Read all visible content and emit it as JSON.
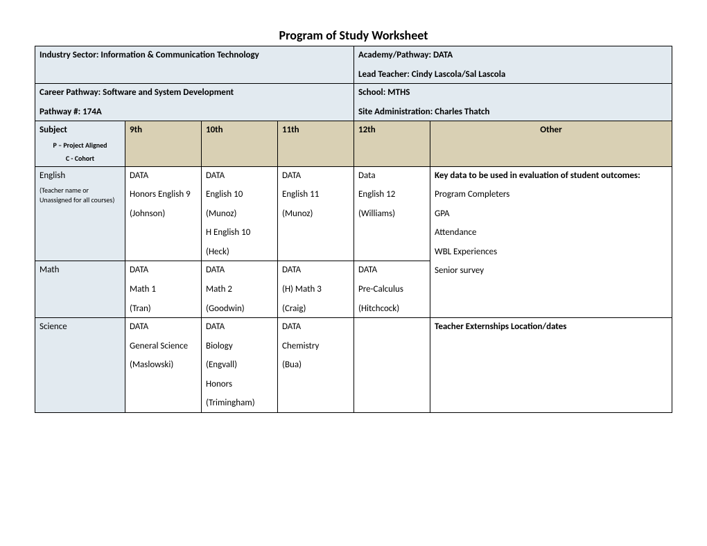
{
  "title": "Program of Study Worksheet",
  "header": {
    "industry_sector": "Industry Sector: Information & Communication Technology",
    "academy_pathway": "Academy/Pathway: DATA",
    "lead_teacher": "Lead Teacher: Cindy Lascola/Sal Lascola",
    "career_pathway": "Career Pathway: Software and System Development",
    "pathway_num": "Pathway #: 174A",
    "school": "School: MTHS",
    "site_admin": "Site Administration: Charles Thatch"
  },
  "cols": {
    "subject": "Subject",
    "legend1": "P – Project Aligned",
    "legend2": "C - Cohort",
    "g9": "9th",
    "g10": "10th",
    "g11": "11th",
    "g12": "12th",
    "other": "Other"
  },
  "rows": {
    "english": {
      "subject": "English",
      "note": "(Teacher name or Unassigned for all courses)",
      "g9": {
        "l1": "DATA",
        "l2": "Honors English 9",
        "l3": "(Johnson)"
      },
      "g10": {
        "l1": "DATA",
        "l2": "English 10",
        "l3": "(Munoz)",
        "l4": "H English 10",
        "l5": "(Heck)"
      },
      "g11": {
        "l1": "DATA",
        "l2": "English 11",
        "l3": "(Munoz)"
      },
      "g12": {
        "l1": "Data",
        "l2": "English 12",
        "l3": "(Williams)"
      }
    },
    "math": {
      "subject": "Math",
      "g9": {
        "l1": "DATA",
        "l2": "Math 1",
        "l3": "(Tran)"
      },
      "g10": {
        "l1": "DATA",
        "l2": "Math 2",
        "l3": "(Goodwin)"
      },
      "g11": {
        "l1": "DATA",
        "l2": "(H) Math 3",
        "l3": "(Craig)"
      },
      "g12": {
        "l1": "DATA",
        "l2": "Pre-Calculus",
        "l3": "(Hitchcock)"
      }
    },
    "science": {
      "subject": "Science",
      "g9": {
        "l1": "DATA",
        "l2": "General Science",
        "l3": "(Maslowski)"
      },
      "g10": {
        "l1": "DATA",
        "l2": "Biology",
        "l3": "(Engvall)",
        "l4": "Honors",
        "l5": "(Trimingham)"
      },
      "g11": {
        "l1": "DATA",
        "l2": "Chemistry",
        "l3": "(Bua)"
      }
    }
  },
  "other_panel": {
    "top": {
      "title": "Key data to be used in evaluation of student outcomes:",
      "l1": "Program Completers",
      "l2": "GPA",
      "l3": "Attendance",
      "l4": "WBL Experiences",
      "l5": "Senior survey"
    },
    "bottom": {
      "title": "Teacher Externships  Location/dates"
    }
  },
  "colors": {
    "header_blue": "#e2eaf0",
    "header_tan": "#d9d0b4",
    "border": "#000000",
    "background": "#ffffff",
    "text": "#000000"
  },
  "typography": {
    "title_size_pt": 14,
    "body_size_pt": 10,
    "small_size_pt": 8,
    "font_family": "Calibri"
  }
}
